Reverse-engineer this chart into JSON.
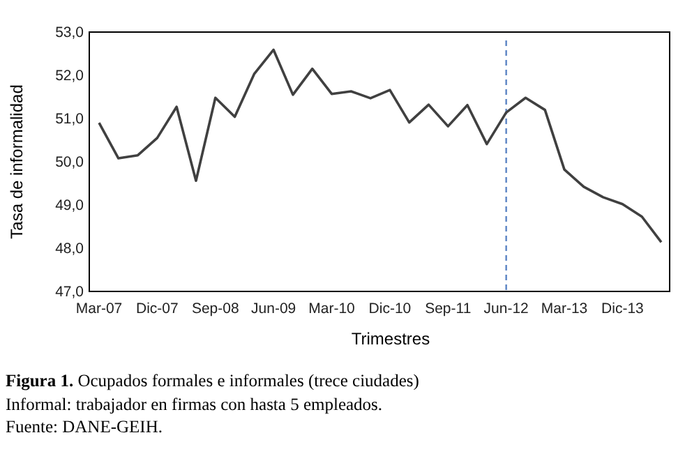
{
  "chart_data": {
    "type": "line",
    "title": "Figura 1. Ocupados formales e informales (trece ciudades)",
    "xlabel": "Trimestres",
    "ylabel": "Tasa de informalidad",
    "categories": [
      "Mar-07",
      null,
      null,
      "Dic-07",
      null,
      null,
      "Sep-08",
      null,
      null,
      "Jun-09",
      null,
      null,
      "Mar-10",
      null,
      null,
      "Dic-10",
      null,
      null,
      "Sep-11",
      null,
      null,
      "Jun-12",
      null,
      null,
      "Mar-13",
      null,
      null,
      "Dic-13",
      null,
      null
    ],
    "series": [
      {
        "color": "#404040",
        "values": [
          50.9,
          50.08,
          50.15,
          50.55,
          51.27,
          49.56,
          51.48,
          51.04,
          52.03,
          52.59,
          51.55,
          52.15,
          51.57,
          51.63,
          51.47,
          51.66,
          50.91,
          51.32,
          50.82,
          51.31,
          50.41,
          51.14,
          51.48,
          51.2,
          49.82,
          49.42,
          49.18,
          49.02,
          48.73,
          48.14
        ]
      }
    ],
    "ylim": [
      47,
      53
    ],
    "yticks": [
      {
        "value": 47,
        "label": "47,0"
      },
      {
        "value": 48,
        "label": "48,0"
      },
      {
        "value": 49,
        "label": "49,0"
      },
      {
        "value": 50,
        "label": "50,0"
      },
      {
        "value": 51,
        "label": "51,0"
      },
      {
        "value": 52,
        "label": "52,0"
      },
      {
        "value": 53,
        "label": "53,0"
      }
    ],
    "ref_lines": [
      {
        "axis": "x",
        "value": "Jun-12",
        "color": "#5b84c4",
        "line_style": "dashed"
      }
    ],
    "annotations": [
      "Informal: trabajador en firmas con hasta 5 empleados.",
      "Fuente: DANE-GEIH."
    ],
    "grid": false,
    "marker": "none",
    "line_style": "solid"
  }
}
